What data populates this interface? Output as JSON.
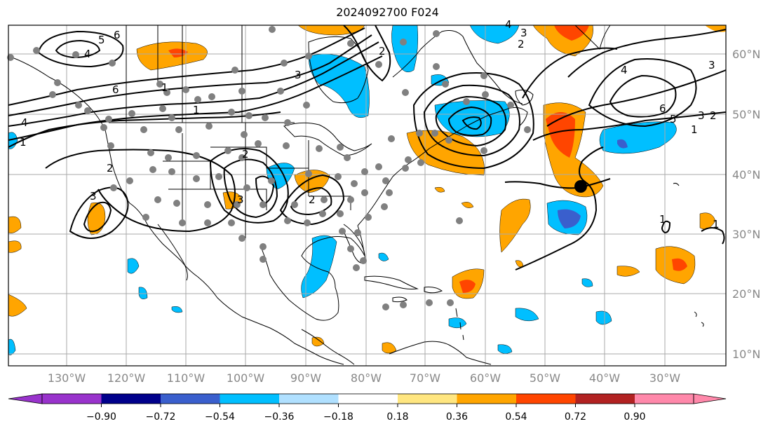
{
  "title": "2024092700 F024",
  "lon_labels": [
    "130°W",
    "120°W",
    "110°W",
    "100°W",
    "90°W",
    "80°W",
    "70°W",
    "60°W",
    "50°W",
    "40°W",
    "30°W"
  ],
  "lat_labels": [
    "60°N",
    "50°N",
    "40°N",
    "30°N",
    "20°N",
    "10°N"
  ],
  "colorbar": {
    "ticks": [
      "−0.90",
      "−0.72",
      "−0.54",
      "−0.36",
      "−0.18",
      "0.18",
      "0.36",
      "0.54",
      "0.72",
      "0.90"
    ],
    "colors": [
      "#9933cc",
      "#00008b",
      "#3a5fcd",
      "#00bfff",
      "#b0e0ff",
      "#ffffff",
      "#ffe680",
      "#ffa500",
      "#ff4500",
      "#b22222",
      "#ff88aa"
    ]
  },
  "contour_labels": [
    "5",
    "6",
    "4",
    "6",
    "1",
    "4",
    "1",
    "2",
    "3",
    "2",
    "1",
    "3",
    "2",
    "3",
    "3",
    "2",
    "4",
    "3",
    "2",
    "4",
    "5",
    "6",
    "3",
    "2",
    "1",
    "1",
    "1"
  ],
  "colors": {
    "grid": "#aaaaaa",
    "coast": "#000000",
    "contour": "#000000",
    "station": "#808080"
  }
}
